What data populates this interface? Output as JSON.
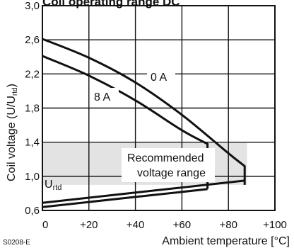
{
  "chart_data": {
    "type": "line",
    "title": "Coil operating range DC",
    "xlabel": "Ambient temperature [°C]",
    "ylabel": "Coil voltage (U/U",
    "ylabel_sub": "rtd",
    "ylabel_close": ")",
    "xlim": [
      0,
      100
    ],
    "ylim": [
      0.6,
      3.0
    ],
    "grid": true,
    "x_ticks": [
      0,
      20,
      40,
      60,
      80,
      100
    ],
    "x_tick_labels": [
      "0",
      "+20",
      "+40",
      "+60",
      "+80",
      "+100"
    ],
    "y_ticks": [
      0.6,
      1.0,
      1.4,
      1.8,
      2.2,
      2.6,
      3.0
    ],
    "y_tick_labels": [
      "0,6",
      "1,0",
      "1,4",
      "1,8",
      "2,2",
      "2,6",
      "3,0"
    ],
    "series": [
      {
        "name": "0 A",
        "x": [
          0,
          20,
          40,
          60,
          80,
          87,
          87
        ],
        "y": [
          2.61,
          2.39,
          2.1,
          1.72,
          1.27,
          1.12,
          0.9
        ],
        "role": "upper limit"
      },
      {
        "name": "8 A",
        "x": [
          0,
          20,
          40,
          60,
          71,
          71
        ],
        "y": [
          2.41,
          2.18,
          1.89,
          1.54,
          1.38,
          0.85
        ],
        "role": "upper limit"
      },
      {
        "name": "",
        "x": [
          0,
          87
        ],
        "y": [
          0.69,
          0.95
        ],
        "role": "lower limit (0 A)"
      },
      {
        "name": "",
        "x": [
          0,
          71
        ],
        "y": [
          0.64,
          0.85
        ],
        "role": "lower limit (8 A)"
      }
    ],
    "recommended_band": {
      "y": [
        0.9,
        1.39
      ],
      "label_line1": "Recommended",
      "label_line2": "voltage range"
    },
    "reference_line": {
      "y": 1.0,
      "label": "U",
      "label_sub": "rtd"
    },
    "curve_label_0A": "0 A",
    "curve_label_8A": "8 A",
    "figure_code": "S0208-E"
  }
}
